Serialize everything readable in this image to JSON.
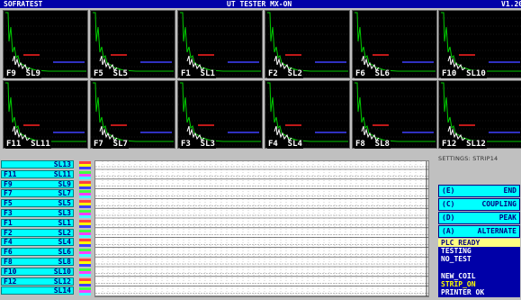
{
  "title": {
    "left": "SOFRATEST",
    "center": "UT TESTER MX-ON",
    "right": "V1.20"
  },
  "colors": {
    "title_bg": "#0000a8",
    "strip_bg": "#00ffff",
    "chart_bg": "#ffffff",
    "scope_bg": "#000000",
    "trace": "#00cc00",
    "gate_red": "#ff2020",
    "gate_blue": "#4040ff"
  },
  "scopes": [
    {
      "label": "F9  SL9"
    },
    {
      "label": "F5  SL5"
    },
    {
      "label": "F1  SL1"
    },
    {
      "label": "F2  SL2"
    },
    {
      "label": "F6  SL6"
    },
    {
      "label": "F10  SL10"
    },
    {
      "label": "F11  SL11"
    },
    {
      "label": "F7  SL7"
    },
    {
      "label": "F3  SL3"
    },
    {
      "label": "F4  SL4"
    },
    {
      "label": "F8  SL8"
    },
    {
      "label": "F12  SL12"
    }
  ],
  "settings": "SETTINGS: STRIP14",
  "strips": [
    {
      "f": "",
      "s": "SL13"
    },
    {
      "f": "F11",
      "s": "SL11"
    },
    {
      "f": "F9",
      "s": "SL9"
    },
    {
      "f": "F7",
      "s": "SL7"
    },
    {
      "f": "F5",
      "s": "SL5"
    },
    {
      "f": "F3",
      "s": "SL3"
    },
    {
      "f": "F1",
      "s": "SL1"
    },
    {
      "f": "F2",
      "s": "SL2"
    },
    {
      "f": "F4",
      "s": "SL4"
    },
    {
      "f": "F6",
      "s": "SL6"
    },
    {
      "f": "F8",
      "s": "SL8"
    },
    {
      "f": "F10",
      "s": "SL10"
    },
    {
      "f": "F12",
      "s": "SL12"
    },
    {
      "f": "",
      "s": "SL14"
    }
  ],
  "buttons": [
    {
      "key": "(E)",
      "label": "END"
    },
    {
      "key": "(C)",
      "label": "COUPLING"
    },
    {
      "key": "(D)",
      "label": "PEAK"
    },
    {
      "key": "(A)",
      "label": "ALTERNATE"
    }
  ],
  "status": [
    {
      "text": "PLC READY",
      "bg": "#ffff80",
      "fg": "#000080"
    },
    {
      "text": "TESTING",
      "bg": "#0000a8",
      "fg": "#ffffff"
    },
    {
      "text": "NO_TEST",
      "bg": "#0000a8",
      "fg": "#ffffff"
    },
    {
      "text": "",
      "bg": "#0000a8",
      "fg": "#ffffff"
    },
    {
      "text": "NEW_COIL",
      "bg": "#0000a8",
      "fg": "#ffffff"
    },
    {
      "text": "STRIP_ON",
      "bg": "#0000a8",
      "fg": "#ffff00"
    },
    {
      "text": "PRINTER OK",
      "bg": "#0000a8",
      "fg": "#ffffff"
    }
  ]
}
